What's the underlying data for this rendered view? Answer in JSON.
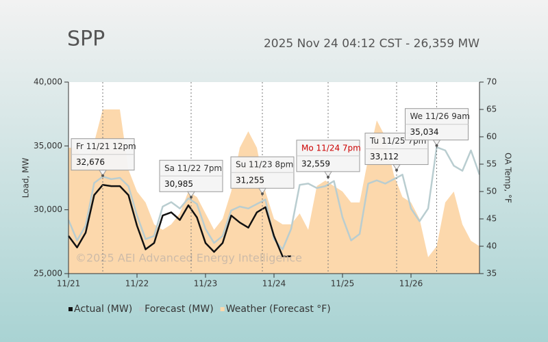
{
  "chart_data": {
    "type": "line",
    "title": "SPP",
    "subtitle": "2025 Nov 24 04:12 CST - 26,359 MW",
    "watermark": "©2025 AEI Advanced Energy Intelligence",
    "y_label": "Load, MW",
    "y2_label": "OA Temp, °F",
    "xlim": [
      0,
      6
    ],
    "xticks": [
      {
        "value": 0,
        "label": "11/21"
      },
      {
        "value": 1,
        "label": "11/22"
      },
      {
        "value": 2,
        "label": "11/23"
      },
      {
        "value": 3,
        "label": "11/24"
      },
      {
        "value": 4,
        "label": "11/25"
      },
      {
        "value": 5,
        "label": "11/26"
      }
    ],
    "ylim": [
      25000,
      40000
    ],
    "yticks": [
      {
        "value": 25000,
        "label": "25,000"
      },
      {
        "value": 30000,
        "label": "30,000"
      },
      {
        "value": 35000,
        "label": "35,000"
      },
      {
        "value": 40000,
        "label": "40,000"
      }
    ],
    "y2lim": [
      35,
      70
    ],
    "y2ticks": [
      35,
      40,
      45,
      50,
      55,
      60,
      65,
      70
    ],
    "x": [
      0,
      0.125,
      0.25,
      0.375,
      0.5,
      0.625,
      0.75,
      0.875,
      1,
      1.125,
      1.25,
      1.375,
      1.5,
      1.625,
      1.75,
      1.875,
      2,
      2.125,
      2.25,
      2.375,
      2.5,
      2.625,
      2.75,
      2.875,
      3,
      3.125,
      3.25,
      3.375,
      3.5,
      3.625,
      3.75,
      3.875,
      4,
      4.125,
      4.25,
      4.375,
      4.5,
      4.625,
      4.75,
      4.875,
      5,
      5.125,
      5.25,
      5.375,
      5.5,
      5.625,
      5.75,
      5.875,
      6
    ],
    "series": [
      {
        "name": "Weather (Forecast °F)",
        "kind": "area",
        "axis": "y2",
        "color": "#fcd8ac",
        "values": [
          58,
          58,
          54,
          59,
          65,
          65,
          65,
          54,
          50,
          48,
          44,
          43,
          44,
          46,
          50,
          49,
          46,
          43,
          45,
          50,
          58,
          61,
          58,
          50,
          45,
          44,
          44,
          46,
          43,
          51,
          52,
          51,
          50,
          48,
          48,
          56,
          63,
          60,
          53,
          49,
          48,
          45,
          38,
          40,
          48,
          50,
          44,
          41,
          40
        ]
      },
      {
        "name": "Forecast (MW)",
        "kind": "line",
        "color": "#b9cdd0",
        "values": [
          29200,
          27600,
          28750,
          32100,
          32600,
          32400,
          32500,
          31850,
          29550,
          27700,
          27950,
          30250,
          30600,
          30100,
          30900,
          30450,
          28500,
          27400,
          27950,
          29950,
          30250,
          30100,
          30450,
          30800,
          27700,
          26900,
          28500,
          31950,
          32050,
          31700,
          31850,
          32250,
          29400,
          27600,
          28100,
          32050,
          32300,
          32050,
          32400,
          32750,
          30100,
          29100,
          30100,
          34900,
          34650,
          33450,
          33050,
          34650,
          32750
        ]
      },
      {
        "name": "Actual (MW)",
        "kind": "line",
        "color": "#111111",
        "values": [
          27950,
          27050,
          28200,
          31150,
          31950,
          31850,
          31850,
          31150,
          28750,
          26900,
          27400,
          29550,
          29800,
          29200,
          30350,
          29400,
          27400,
          26700,
          27400,
          29550,
          29000,
          28600,
          29800,
          30200,
          27950,
          26350,
          26350,
          null,
          null,
          null,
          null,
          null,
          null,
          null,
          null,
          null,
          null,
          null,
          null,
          null,
          null,
          null,
          null,
          null,
          null,
          null,
          null,
          null,
          null
        ]
      }
    ],
    "annotations": [
      {
        "x": 0.5,
        "label": "Fr 11/21 12pm",
        "value": 32676,
        "value_label": "32,676",
        "color": "#333333"
      },
      {
        "x": 1.79,
        "label": "Sa 11/22 7pm",
        "value": 30985,
        "value_label": "30,985",
        "color": "#333333"
      },
      {
        "x": 2.83,
        "label": "Su 11/23 8pm",
        "value": 31255,
        "value_label": "31,255",
        "color": "#333333"
      },
      {
        "x": 3.79,
        "label": "Mo 11/24 7pm",
        "value": 32559,
        "value_label": "32,559",
        "color": "#cc0000"
      },
      {
        "x": 4.79,
        "label": "Tu 11/25 7pm",
        "value": 33112,
        "value_label": "33,112",
        "color": "#333333"
      },
      {
        "x": 5.375,
        "label": "We 11/26 9am",
        "value": 35034,
        "value_label": "35,034",
        "color": "#333333"
      }
    ]
  }
}
